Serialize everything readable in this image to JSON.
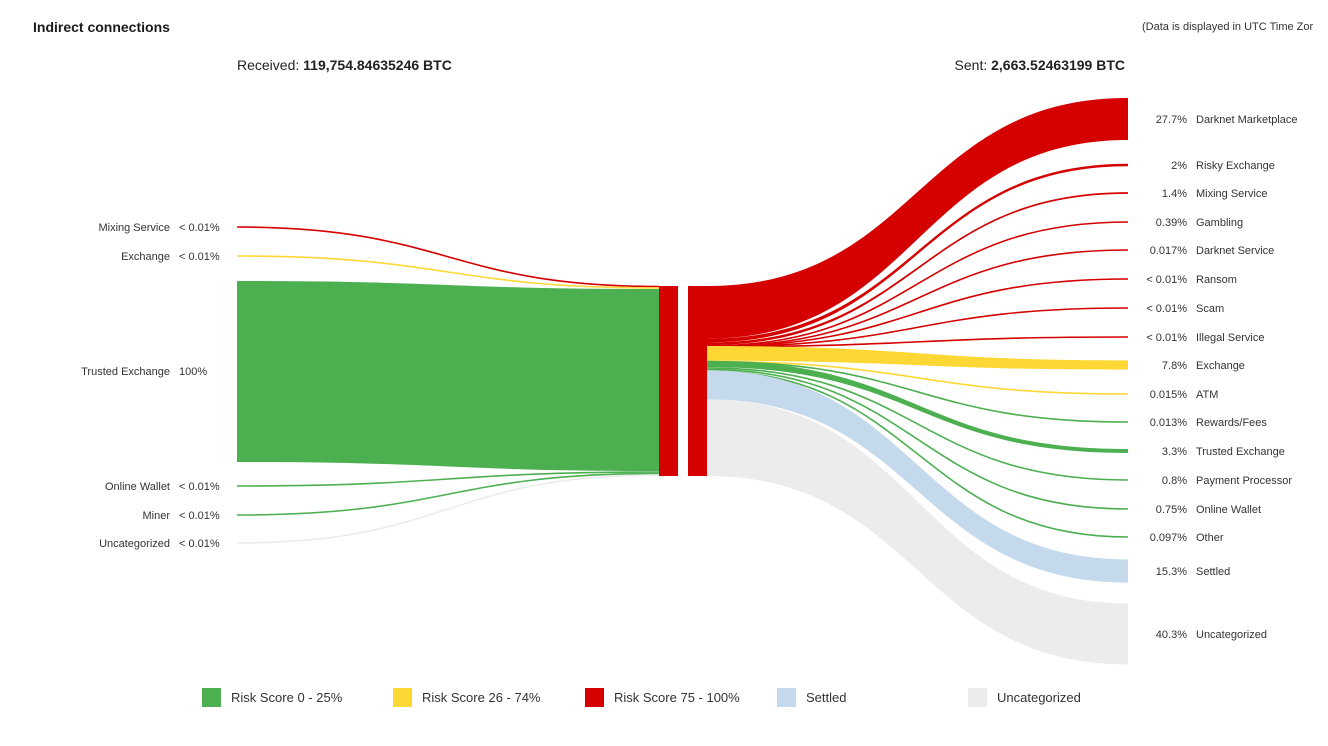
{
  "header": {
    "title": "Indirect connections",
    "timezone_note": "(Data is displayed in UTC Time Zor"
  },
  "totals": {
    "received_label": "Received:",
    "received_value": "119,754.84635246 BTC",
    "sent_label": "Sent:",
    "sent_value": "2,663.52463199 BTC"
  },
  "colors": {
    "risk_low": "#4caf50",
    "risk_mid": "#fdd835",
    "risk_high": "#d50000",
    "settled": "#c5d9ec",
    "uncategorized": "#ececec"
  },
  "legend": [
    {
      "label": "Risk Score 0 - 25%",
      "color": "#4caf50"
    },
    {
      "label": "Risk Score 26 - 74%",
      "color": "#fdd835"
    },
    {
      "label": "Risk Score 75 - 100%",
      "color": "#d50000"
    },
    {
      "label": "Settled",
      "color": "#c5d9ec"
    },
    {
      "label": "Uncategorized",
      "color": "#ececec"
    }
  ],
  "chart_data": {
    "type": "sankey",
    "center_node": "",
    "incoming": [
      {
        "name": "Mixing Service",
        "pct_label": "< 0.01%",
        "percent": 0.005,
        "risk": "high"
      },
      {
        "name": "Exchange",
        "pct_label": "< 0.01%",
        "percent": 0.005,
        "risk": "mid"
      },
      {
        "name": "Trusted Exchange",
        "pct_label": "100%",
        "percent": 100,
        "risk": "low"
      },
      {
        "name": "Online Wallet",
        "pct_label": "< 0.01%",
        "percent": 0.005,
        "risk": "low"
      },
      {
        "name": "Miner",
        "pct_label": "< 0.01%",
        "percent": 0.005,
        "risk": "low"
      },
      {
        "name": "Uncategorized",
        "pct_label": "< 0.01%",
        "percent": 0.005,
        "risk": "uncategorized"
      }
    ],
    "outgoing": [
      {
        "name": "Darknet Marketplace",
        "pct_label": "27.7%",
        "percent": 27.7,
        "risk": "high"
      },
      {
        "name": "Risky Exchange",
        "pct_label": "2%",
        "percent": 2,
        "risk": "high"
      },
      {
        "name": "Mixing Service",
        "pct_label": "1.4%",
        "percent": 1.4,
        "risk": "high"
      },
      {
        "name": "Gambling",
        "pct_label": "0.39%",
        "percent": 0.39,
        "risk": "high"
      },
      {
        "name": "Darknet Service",
        "pct_label": "0.017%",
        "percent": 0.017,
        "risk": "high"
      },
      {
        "name": "Ransom",
        "pct_label": "< 0.01%",
        "percent": 0.005,
        "risk": "high"
      },
      {
        "name": "Scam",
        "pct_label": "< 0.01%",
        "percent": 0.005,
        "risk": "high"
      },
      {
        "name": "Illegal Service",
        "pct_label": "< 0.01%",
        "percent": 0.005,
        "risk": "high"
      },
      {
        "name": "Exchange",
        "pct_label": "7.8%",
        "percent": 7.8,
        "risk": "mid"
      },
      {
        "name": "ATM",
        "pct_label": "0.015%",
        "percent": 0.015,
        "risk": "mid"
      },
      {
        "name": "Rewards/Fees",
        "pct_label": "0.013%",
        "percent": 0.013,
        "risk": "low"
      },
      {
        "name": "Trusted Exchange",
        "pct_label": "3.3%",
        "percent": 3.3,
        "risk": "low"
      },
      {
        "name": "Payment Processor",
        "pct_label": "0.8%",
        "percent": 0.8,
        "risk": "low"
      },
      {
        "name": "Online Wallet",
        "pct_label": "0.75%",
        "percent": 0.75,
        "risk": "low"
      },
      {
        "name": "Other",
        "pct_label": "0.097%",
        "percent": 0.097,
        "risk": "low"
      },
      {
        "name": "Settled",
        "pct_label": "15.3%",
        "percent": 15.3,
        "risk": "settled"
      },
      {
        "name": "Uncategorized",
        "pct_label": "40.3%",
        "percent": 40.3,
        "risk": "uncategorized"
      }
    ]
  }
}
